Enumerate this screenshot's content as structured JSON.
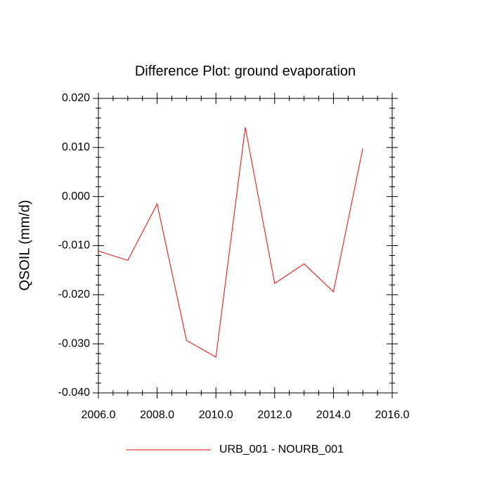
{
  "chart_data": {
    "type": "line",
    "title": "Difference Plot: ground evaporation",
    "y_label": "QSOIL  (mm/d)",
    "x": [
      2006,
      2007,
      2008,
      2009,
      2010,
      2011,
      2012,
      2013,
      2014,
      2015
    ],
    "series": [
      {
        "name": "URB_001 - NOURB_001",
        "color": "#ff0000",
        "values": [
          -0.0111,
          -0.013,
          -0.0015,
          -0.0293,
          -0.0327,
          0.0141,
          -0.0177,
          -0.0137,
          -0.0194,
          0.0098
        ]
      }
    ],
    "xlim": [
      2006,
      2016
    ],
    "xticks": [
      {
        "value": 2006,
        "label": "2006.0"
      },
      {
        "value": 2008,
        "label": "2008.0"
      },
      {
        "value": 2010,
        "label": "2010.0"
      },
      {
        "value": 2012,
        "label": "2012.0"
      },
      {
        "value": 2014,
        "label": "2014.0"
      },
      {
        "value": 2016,
        "label": "2016.0"
      }
    ],
    "ylim": [
      -0.04,
      0.02
    ],
    "yticks": [
      {
        "value": -0.04,
        "label": "-0.040"
      },
      {
        "value": -0.03,
        "label": "-0.030"
      },
      {
        "value": -0.02,
        "label": "-0.020"
      },
      {
        "value": -0.01,
        "label": "-0.010"
      },
      {
        "value": 0,
        "label": "0.000"
      },
      {
        "value": 0.01,
        "label": "0.010"
      },
      {
        "value": 0.02,
        "label": "0.020"
      }
    ],
    "legend": "bottom"
  }
}
